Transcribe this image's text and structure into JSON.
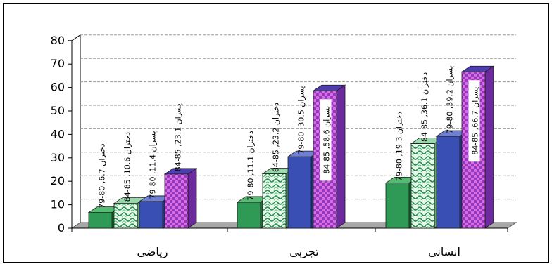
{
  "chart_data": {
    "type": "bar",
    "title": "",
    "xlabel": "",
    "ylabel": "",
    "ylim": [
      0,
      80
    ],
    "yticks": [
      0,
      10,
      20,
      30,
      40,
      50,
      60,
      70,
      80
    ],
    "categories": [
      "رياضی",
      "تجربی",
      "انسانی"
    ],
    "bars": [
      {
        "category": 0,
        "value": 6.7,
        "style": "green-solid",
        "label": "79-80 ,دختران 6.7"
      },
      {
        "category": 0,
        "value": 10.6,
        "style": "green-pattern",
        "label": "84-85 ,دختران 10.6"
      },
      {
        "category": 0,
        "value": 11.4,
        "style": "blue-solid",
        "label": "79-80 ,پسران 11.4"
      },
      {
        "category": 0,
        "value": 23.1,
        "style": "blue-pattern",
        "label": "84-85 ,پسران 23.1"
      },
      {
        "category": 1,
        "value": 11.1,
        "style": "green-solid",
        "label": "79-80 ,دختران 11.1"
      },
      {
        "category": 1,
        "value": 23.2,
        "style": "green-pattern",
        "label": "84-85 ,دختران 23.2"
      },
      {
        "category": 1,
        "value": 30.5,
        "style": "blue-solid",
        "label": "79-80 ,پسران 30.5"
      },
      {
        "category": 1,
        "value": 58.6,
        "style": "blue-pattern",
        "label": "84-85 ,پسران 58.6"
      },
      {
        "category": 2,
        "value": 19.3,
        "style": "green-solid",
        "label": "79-80 ,دختران 19.3"
      },
      {
        "category": 2,
        "value": 36.1,
        "style": "green-pattern",
        "label": "84-85 ,دختران 36.1"
      },
      {
        "category": 2,
        "value": 39.2,
        "style": "blue-solid",
        "label": "79-80 ,پسران 39.2"
      },
      {
        "category": 2,
        "value": 66.7,
        "style": "blue-pattern",
        "label": "84-85 ,پسران 66.7"
      }
    ],
    "grid": true,
    "colors": {
      "green": "#2f9a55",
      "green_dark": "#1f6e3a",
      "green_pattern_bg": "#e8f7ec",
      "blue": "#3a4fb4",
      "blue_dark": "#253383",
      "purple": "#8a3cc8",
      "pink": "#e26ad8",
      "floor": "#a8a8a8"
    }
  }
}
